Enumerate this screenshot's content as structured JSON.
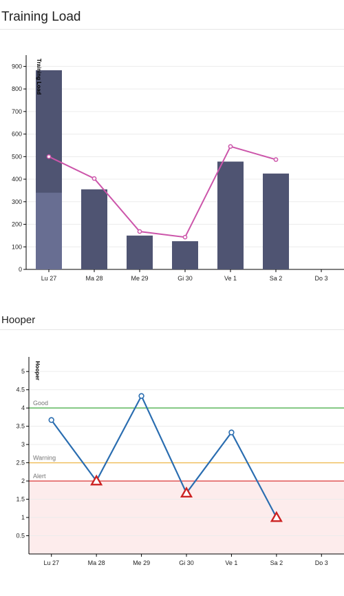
{
  "sections": [
    {
      "title": "Training Load"
    },
    {
      "title": "Hooper"
    }
  ],
  "chart_data": [
    {
      "type": "bar",
      "title": "Training Load",
      "ylabel": "Training Load",
      "xlabel": "",
      "categories": [
        "Lu 27",
        "Ma 28",
        "Me 29",
        "Gi 30",
        "Ve 1",
        "Sa 2",
        "Do 3"
      ],
      "ylim": [
        0,
        950
      ],
      "yticks": [
        0,
        100,
        200,
        300,
        400,
        500,
        600,
        700,
        800,
        900
      ],
      "grid": true,
      "series": [
        {
          "kind": "bar-lower",
          "color": "#686e92",
          "values": [
            340,
            null,
            null,
            null,
            null,
            null,
            null
          ]
        },
        {
          "kind": "bar",
          "color": "#4f5472",
          "values": [
            883,
            355,
            150,
            125,
            478,
            425,
            null
          ]
        },
        {
          "kind": "line",
          "color": "#cc55aa",
          "values": [
            500,
            403,
            168,
            143,
            545,
            487,
            null
          ]
        }
      ]
    },
    {
      "type": "line",
      "title": "Hooper",
      "ylabel": "Hooper",
      "xlabel": "",
      "categories": [
        "Lu 27",
        "Ma 28",
        "Me 29",
        "Gi 30",
        "Ve 1",
        "Sa 2",
        "Do 3"
      ],
      "ylim": [
        0,
        5.4
      ],
      "yticks": [
        0.5,
        1,
        1.5,
        2,
        2.5,
        3,
        3.5,
        4,
        4.5,
        5
      ],
      "grid": true,
      "alert_zone": {
        "from": 0,
        "to": 2,
        "color": "#fdecec"
      },
      "thresholds": [
        {
          "label": "Good",
          "value": 4,
          "color": "#5cb85c"
        },
        {
          "label": "Warning",
          "value": 2.5,
          "color": "#f0c060"
        },
        {
          "label": "Alert",
          "value": 2,
          "color": "#e05555"
        }
      ],
      "series": [
        {
          "color": "#2a6db0",
          "values": [
            3.67,
            2.0,
            4.33,
            1.67,
            3.33,
            1.0,
            null
          ],
          "alerts": [
            false,
            true,
            false,
            true,
            false,
            true,
            false
          ]
        }
      ]
    }
  ]
}
